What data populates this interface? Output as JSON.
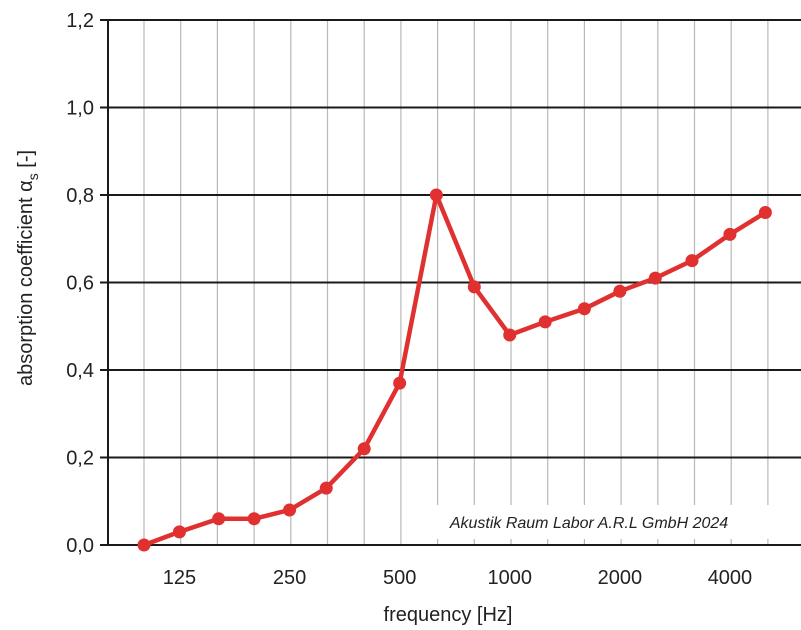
{
  "chart_data": {
    "type": "line",
    "xlabel": "frequency [Hz]",
    "ylabel_main": "absorption coefficient α",
    "ylabel_sub": "s",
    "ylabel_suffix": " [-]",
    "ylim": [
      0,
      1.2
    ],
    "y_ticks": [
      0,
      0.2,
      0.4,
      0.6,
      0.8,
      1.0,
      1.2
    ],
    "y_tick_labels": [
      "0,0",
      "0,2",
      "0,4",
      "0,6",
      "0,8",
      "1,0",
      "1,2"
    ],
    "x_scale": "log (third-octave bands)",
    "x_tick_values": [
      125,
      250,
      500,
      1000,
      2000,
      4000
    ],
    "x_tick_labels": [
      "125",
      "250",
      "500",
      "1000",
      "2000",
      "4000"
    ],
    "x_grid_count": 19,
    "grid": true,
    "annotation": "Akustik Raum Labor A.R.L GmbH 2024",
    "series": [
      {
        "x": [
          100,
          125,
          160,
          200,
          250,
          315,
          400,
          500,
          630,
          800,
          1000,
          1250,
          1600,
          2000,
          2500,
          3150,
          4000,
          5000
        ],
        "values": [
          0.0,
          0.03,
          0.06,
          0.06,
          0.08,
          0.13,
          0.22,
          0.37,
          0.8,
          0.59,
          0.48,
          0.51,
          0.54,
          0.58,
          0.61,
          0.65,
          0.71,
          0.76
        ]
      }
    ],
    "colors": {
      "line": "#e03030",
      "grid_minor": "#b8b8b8",
      "grid_major": "#1a1a1a"
    }
  }
}
